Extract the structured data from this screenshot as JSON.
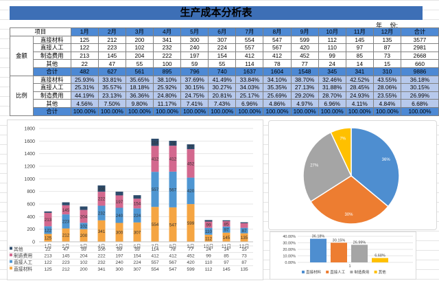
{
  "title": "生产成本分析表",
  "year_label": "年　 份:",
  "table": {
    "header_label": "项目",
    "months": [
      "1月",
      "2月",
      "3月",
      "4月",
      "5月",
      "6月",
      "7月",
      "8月",
      "9月",
      "10月",
      "11月",
      "12月",
      "合计"
    ],
    "amount_group": "金额",
    "ratio_group": "比例",
    "amount_rows": [
      {
        "label": "直接材料",
        "values": [
          "125",
          "212",
          "200",
          "341",
          "300",
          "307",
          "554",
          "547",
          "599",
          "112",
          "145",
          "135",
          "3577"
        ]
      },
      {
        "label": "直接人工",
        "values": [
          "122",
          "223",
          "102",
          "232",
          "240",
          "224",
          "557",
          "567",
          "420",
          "110",
          "97",
          "87",
          "2981"
        ]
      },
      {
        "label": "制造费用",
        "values": [
          "213",
          "145",
          "204",
          "222",
          "197",
          "154",
          "412",
          "412",
          "452",
          "99",
          "85",
          "73",
          "2668"
        ]
      },
      {
        "label": "其他",
        "values": [
          "22",
          "47",
          "55",
          "100",
          "59",
          "55",
          "114",
          "78",
          "77",
          "24",
          "14",
          "15",
          "660"
        ]
      }
    ],
    "amount_total": {
      "label": "合计",
      "values": [
        "482",
        "627",
        "561",
        "895",
        "796",
        "740",
        "1637",
        "1604",
        "1548",
        "345",
        "341",
        "310",
        "9886"
      ]
    },
    "ratio_rows": [
      {
        "label": "直接材料",
        "values": [
          "25.93%",
          "33.81%",
          "35.65%",
          "38.10%",
          "37.69%",
          "41.49%",
          "33.84%",
          "34.10%",
          "38.70%",
          "32.46%",
          "42.52%",
          "43.55%",
          "36.18%"
        ]
      },
      {
        "label": "直接人工",
        "values": [
          "25.31%",
          "35.57%",
          "18.18%",
          "25.92%",
          "30.15%",
          "30.27%",
          "34.03%",
          "35.35%",
          "27.13%",
          "31.88%",
          "28.45%",
          "28.06%",
          "30.15%"
        ]
      },
      {
        "label": "制造费用",
        "values": [
          "44.19%",
          "23.13%",
          "36.36%",
          "24.80%",
          "24.75%",
          "20.81%",
          "25.17%",
          "25.69%",
          "29.20%",
          "28.70%",
          "24.93%",
          "23.55%",
          "26.99%"
        ]
      },
      {
        "label": "其他",
        "values": [
          "4.56%",
          "7.50%",
          "9.80%",
          "11.17%",
          "7.41%",
          "7.43%",
          "6.96%",
          "4.86%",
          "4.97%",
          "6.96%",
          "4.11%",
          "4.84%",
          "6.68%"
        ]
      }
    ],
    "ratio_total": {
      "label": "合计",
      "values": [
        "100.00%",
        "100.00%",
        "100.00%",
        "100.00%",
        "100.00%",
        "100.00%",
        "100.00%",
        "100.00%",
        "100.00%",
        "100.00%",
        "100.00%",
        "100.00%",
        "100.00%"
      ]
    }
  },
  "chart_data": [
    {
      "type": "bar",
      "stacked": true,
      "categories": [
        "1月",
        "2月",
        "3月",
        "4月",
        "5月",
        "6月",
        "7月",
        "8月",
        "9月",
        "10月",
        "11月",
        "12月"
      ],
      "ylim": [
        0,
        1800
      ],
      "yticks": [
        0,
        200,
        400,
        600,
        800,
        1000,
        1200,
        1400,
        1600,
        1800
      ],
      "series": [
        {
          "name": "直接材料",
          "color": "#f5a542",
          "values": [
            125,
            212,
            200,
            341,
            300,
            307,
            554,
            547,
            599,
            112,
            145,
            135
          ]
        },
        {
          "name": "直接人工",
          "color": "#4e96d2",
          "values": [
            122,
            223,
            102,
            232,
            240,
            224,
            557,
            567,
            420,
            110,
            97,
            87
          ]
        },
        {
          "name": "制造费用",
          "color": "#d3688e",
          "values": [
            213,
            145,
            204,
            222,
            197,
            154,
            412,
            412,
            452,
            99,
            85,
            73
          ]
        },
        {
          "name": "其他",
          "color": "#2d4b6b",
          "values": [
            22,
            47,
            55,
            100,
            59,
            55,
            114,
            78,
            77,
            24,
            14,
            15
          ]
        }
      ],
      "legend": "bottom-table"
    },
    {
      "type": "pie",
      "labels": [
        "直接材料",
        "直接人工",
        "制造费用",
        "其他"
      ],
      "values": [
        36,
        30,
        27,
        7
      ],
      "data_labels": [
        "36%",
        "30%",
        "27%",
        "7%"
      ],
      "colors": [
        "#4e8ed0",
        "#ed7d31",
        "#a5a5a5",
        "#ffc000"
      ]
    },
    {
      "type": "bar",
      "categories": [
        "1"
      ],
      "ylim": [
        0,
        0.4
      ],
      "yticks": [
        "0.00%",
        "10.00%",
        "20.00%",
        "30.00%",
        "40.00%"
      ],
      "series": [
        {
          "name": "直接材料",
          "color": "#4e8ed0",
          "values": [
            0.3618
          ],
          "label": "36.18%"
        },
        {
          "name": "直接人工",
          "color": "#ed7d31",
          "values": [
            0.3015
          ],
          "label": "30.15%"
        },
        {
          "name": "制造费用",
          "color": "#a5a5a5",
          "values": [
            0.2699
          ],
          "label": "26.99%"
        },
        {
          "name": "其他",
          "color": "#ffc000",
          "values": [
            0.0668
          ],
          "label": "6.68%"
        }
      ],
      "legend": "bottom"
    }
  ]
}
